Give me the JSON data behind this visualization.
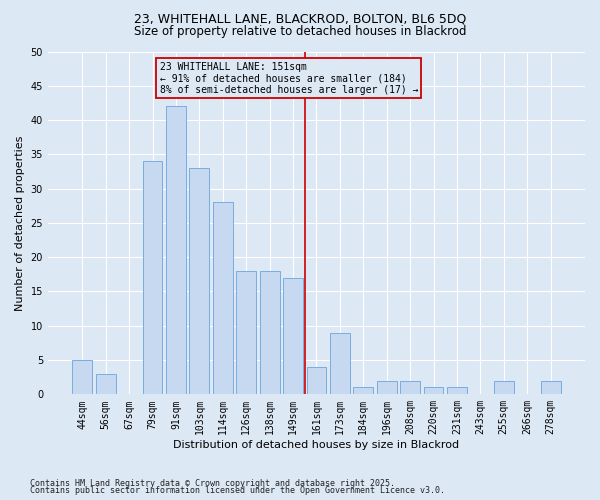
{
  "title1": "23, WHITEHALL LANE, BLACKROD, BOLTON, BL6 5DQ",
  "title2": "Size of property relative to detached houses in Blackrod",
  "xlabel": "Distribution of detached houses by size in Blackrod",
  "ylabel": "Number of detached properties",
  "categories": [
    "44sqm",
    "56sqm",
    "67sqm",
    "79sqm",
    "91sqm",
    "103sqm",
    "114sqm",
    "126sqm",
    "138sqm",
    "149sqm",
    "161sqm",
    "173sqm",
    "184sqm",
    "196sqm",
    "208sqm",
    "220sqm",
    "231sqm",
    "243sqm",
    "255sqm",
    "266sqm",
    "278sqm"
  ],
  "values": [
    5,
    3,
    0,
    34,
    42,
    33,
    28,
    18,
    18,
    17,
    4,
    9,
    1,
    2,
    2,
    1,
    1,
    0,
    2,
    0,
    2
  ],
  "bar_color": "#c6d9f0",
  "bar_edge_color": "#7aace0",
  "annotation_line1": "23 WHITEHALL LANE: 151sqm",
  "annotation_line2": "← 91% of detached houses are smaller (184)",
  "annotation_line3": "8% of semi-detached houses are larger (17) →",
  "annotation_box_color": "#cc0000",
  "vline_pos": 9.5,
  "ylim": [
    0,
    50
  ],
  "yticks": [
    0,
    5,
    10,
    15,
    20,
    25,
    30,
    35,
    40,
    45,
    50
  ],
  "footnote1": "Contains HM Land Registry data © Crown copyright and database right 2025.",
  "footnote2": "Contains public sector information licensed under the Open Government Licence v3.0.",
  "bg_color": "#dde8f5",
  "plot_bg_color": "#dde8f5",
  "title_fontsize": 9,
  "subtitle_fontsize": 8.5,
  "tick_fontsize": 7,
  "ylabel_fontsize": 8,
  "xlabel_fontsize": 8,
  "annotation_fontsize": 7,
  "footnote_fontsize": 6
}
